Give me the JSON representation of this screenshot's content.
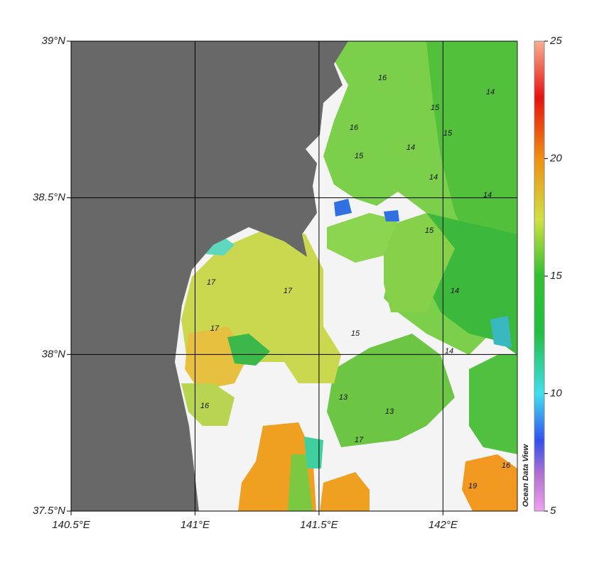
{
  "chart_data": {
    "type": "map",
    "xlim": [
      140.5,
      142.3
    ],
    "ylim": [
      37.5,
      39
    ],
    "xticks": [
      {
        "value": 140.5,
        "label": "140.5°E"
      },
      {
        "value": 141,
        "label": "141°E"
      },
      {
        "value": 141.5,
        "label": "141.5°E"
      },
      {
        "value": 142,
        "label": "142°E"
      }
    ],
    "yticks": [
      {
        "value": 37.5,
        "label": "37.5°N"
      },
      {
        "value": 38,
        "label": "38°N"
      },
      {
        "value": 38.5,
        "label": "38.5°N"
      },
      {
        "value": 39,
        "label": "39°N"
      }
    ],
    "grid": true,
    "colorbar": {
      "lim": [
        5,
        25
      ],
      "ticks": [
        5,
        10,
        15,
        20,
        25
      ]
    },
    "contour_labels": [
      16,
      15,
      14,
      14,
      15,
      14,
      16,
      15,
      14,
      15,
      17,
      17,
      17,
      16,
      15,
      14,
      13,
      17,
      19,
      16,
      13,
      14
    ],
    "watermark": "Ocean Data View"
  }
}
